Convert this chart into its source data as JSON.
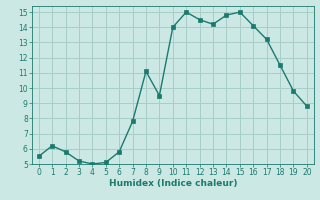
{
  "x": [
    0,
    1,
    2,
    3,
    4,
    5,
    6,
    7,
    8,
    9,
    10,
    11,
    12,
    13,
    14,
    15,
    16,
    17,
    18,
    19,
    20
  ],
  "y": [
    5.5,
    6.2,
    5.8,
    5.2,
    5.0,
    5.1,
    5.8,
    7.8,
    11.1,
    9.5,
    14.0,
    15.0,
    14.5,
    14.2,
    14.8,
    15.0,
    14.1,
    13.2,
    11.5,
    9.8,
    8.8
  ],
  "line_color": "#1a7a6e",
  "marker_color": "#1a7a6e",
  "bg_color": "#cce8e4",
  "grid_color": "#a8ceca",
  "xlabel": "Humidex (Indice chaleur)",
  "xlim": [
    -0.5,
    20.5
  ],
  "ylim": [
    5,
    15.4
  ],
  "yticks": [
    5,
    6,
    7,
    8,
    9,
    10,
    11,
    12,
    13,
    14,
    15
  ],
  "xticks": [
    0,
    1,
    2,
    3,
    4,
    5,
    6,
    7,
    8,
    9,
    10,
    11,
    12,
    13,
    14,
    15,
    16,
    17,
    18,
    19,
    20
  ]
}
